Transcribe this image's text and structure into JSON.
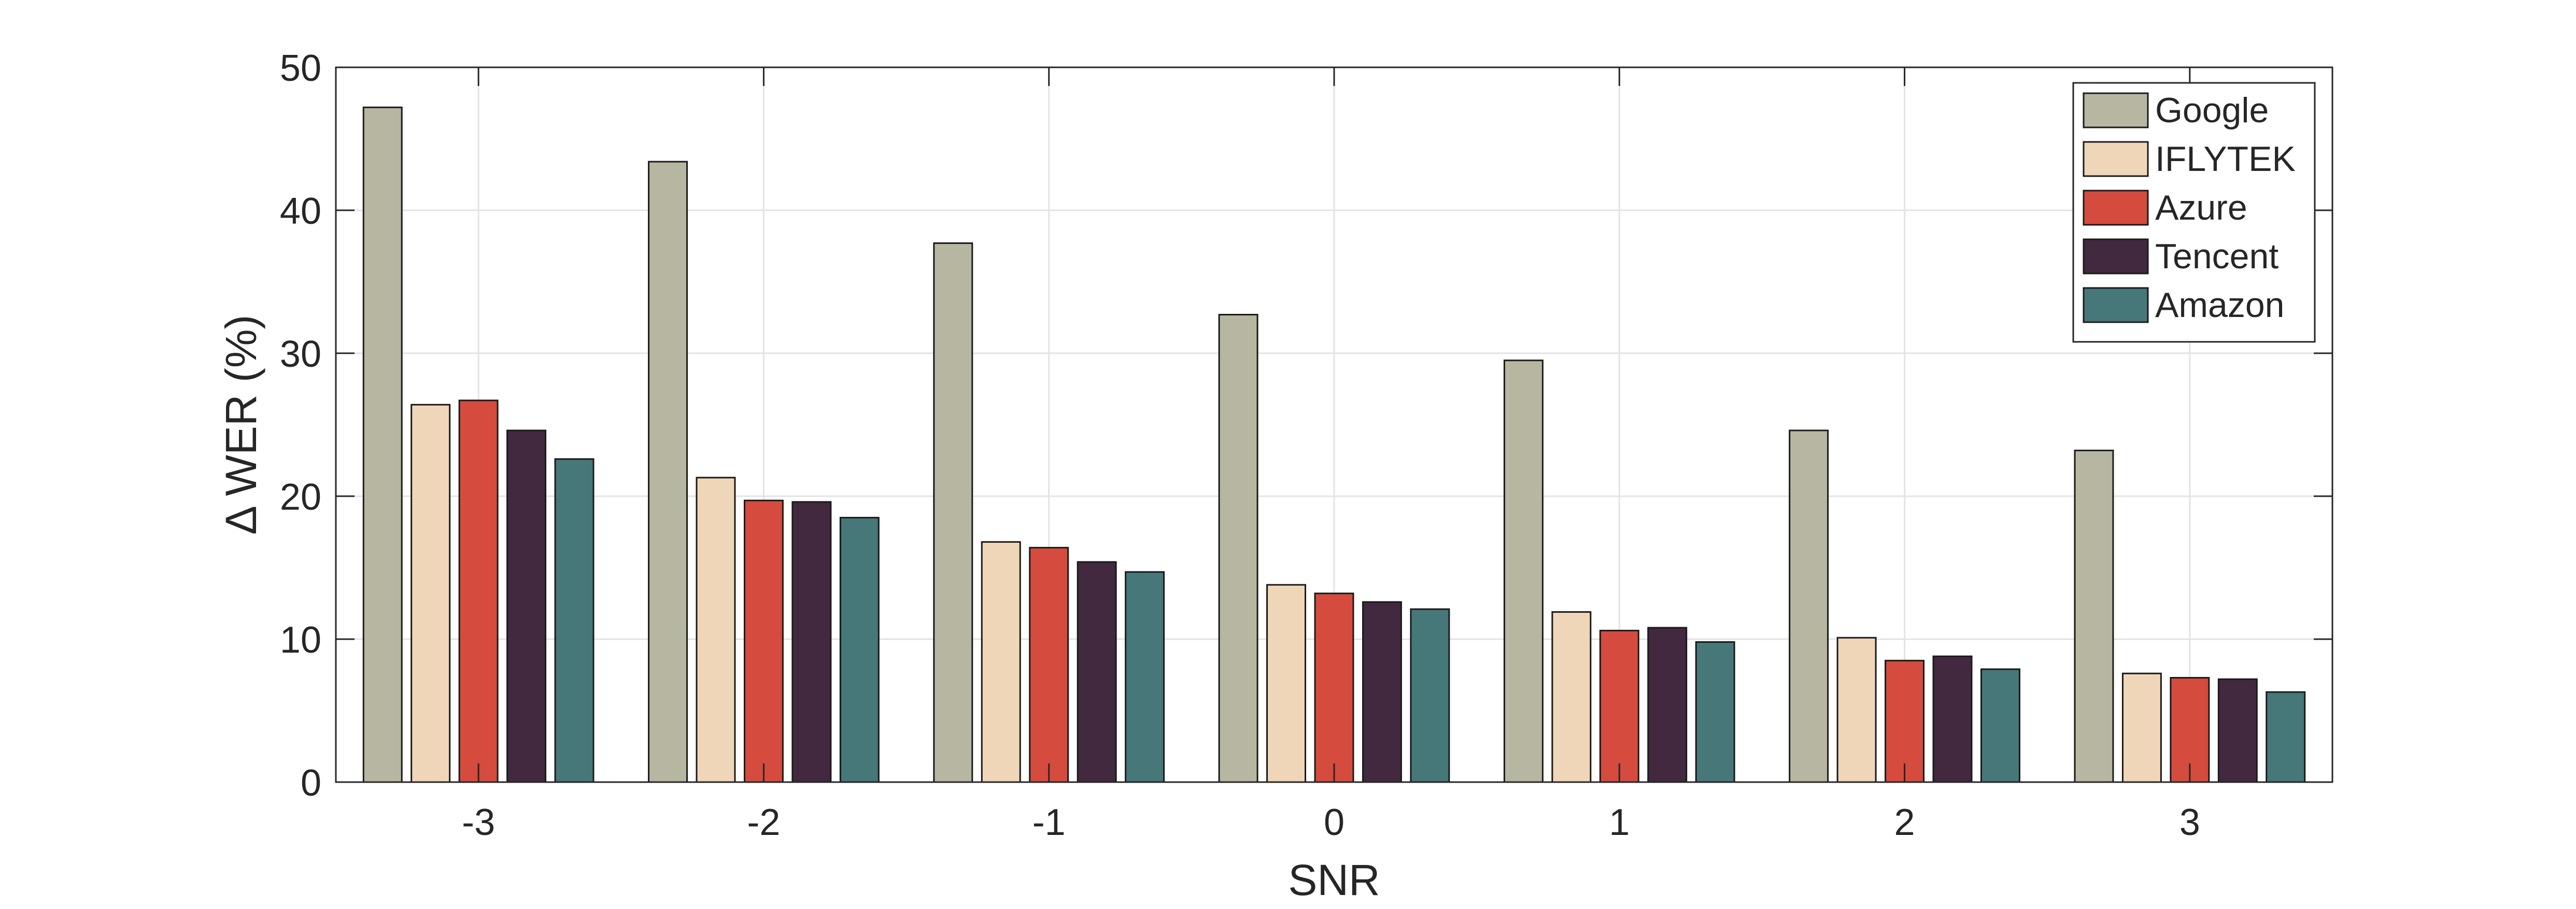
{
  "chart_data": {
    "type": "bar",
    "title": "",
    "xlabel": "SNR",
    "ylabel": "Δ WER (%)",
    "ylim": [
      0,
      50
    ],
    "yticks": [
      0,
      10,
      20,
      30,
      40,
      50
    ],
    "grid": true,
    "legend_position": "top-right",
    "categories": [
      "-3",
      "-2",
      "-1",
      "0",
      "1",
      "2",
      "3"
    ],
    "series": [
      {
        "name": "Google",
        "color": "#b7b6a0",
        "values": [
          47.2,
          43.4,
          37.7,
          32.7,
          29.5,
          24.6,
          23.2
        ]
      },
      {
        "name": "IFLYTEK",
        "color": "#f0d6b8",
        "values": [
          26.4,
          21.3,
          16.8,
          13.8,
          11.9,
          10.1,
          7.6
        ]
      },
      {
        "name": "Azure",
        "color": "#d54b3d",
        "values": [
          26.7,
          19.7,
          16.4,
          13.2,
          10.6,
          8.5,
          7.3
        ]
      },
      {
        "name": "Tencent",
        "color": "#42293f",
        "values": [
          24.6,
          19.6,
          15.4,
          12.6,
          10.8,
          8.8,
          7.2
        ]
      },
      {
        "name": "Amazon",
        "color": "#467779",
        "values": [
          22.6,
          18.5,
          14.7,
          12.1,
          9.8,
          7.9,
          6.3
        ]
      }
    ]
  }
}
